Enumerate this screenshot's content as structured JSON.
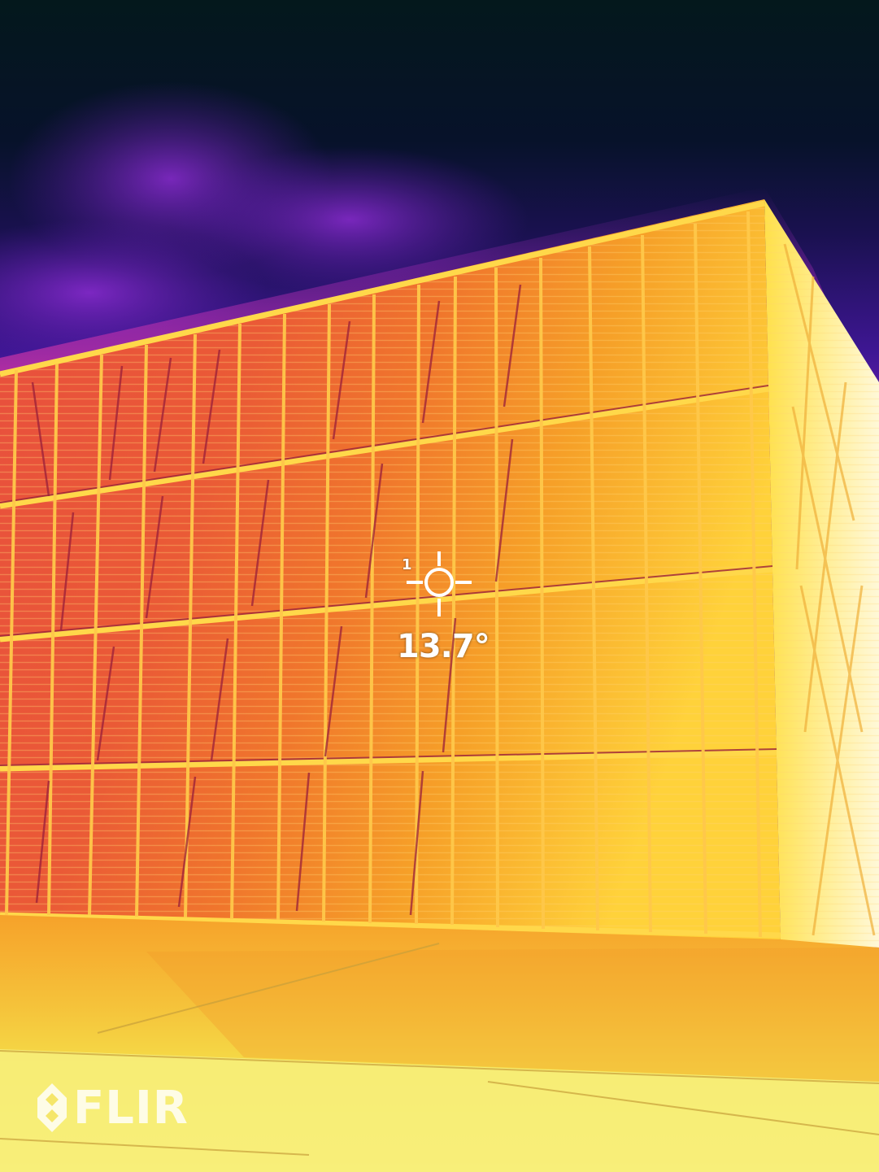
{
  "image": {
    "description_kind": "thermal-camera-photo",
    "palette": {
      "sky_dark": "#04141a",
      "sky_indigo": "#1a1150",
      "sky_violet": "#6a1fb0",
      "facade_red": "#e0503a",
      "facade_orange": "#f08a2a",
      "facade_yellow": "#ffd23a",
      "ground_yellow": "#f2e04a",
      "hot_white": "#fff6c8",
      "frame_line": "#9a1f3a"
    }
  },
  "measurement": {
    "spot_index": "1",
    "temperature": "13.7°"
  },
  "brand": {
    "logo_text": "FLIR",
    "logo_icon": "flir-logo-icon"
  }
}
